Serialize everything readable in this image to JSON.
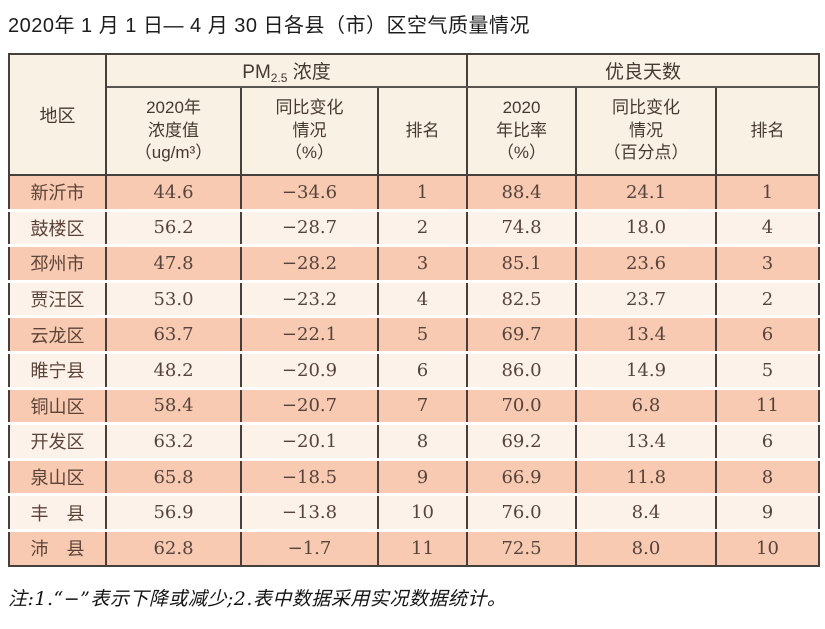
{
  "title": "2020年 1 月 1 日— 4 月 30 日各县（市）区空气质量情况",
  "colors": {
    "row_odd": "#f8cab1",
    "row_even": "#fdf2ea",
    "header_bg": "#faf1e5",
    "border_dark": "#45403c",
    "text_table": "#55443c",
    "title_text": "#1c1c1c"
  },
  "table": {
    "region_header": "地区",
    "pm_group": {
      "prefix": "PM",
      "sub": "2.5",
      "suffix": " 浓度"
    },
    "good_group": "优良天数",
    "sub_headers": {
      "pm_value": "2020年\n浓度值\n（ug/m³）",
      "pm_change": "同比变化\n情况\n（%）",
      "pm_rank": "排名",
      "good_rate": "2020\n年比率\n（%）",
      "good_change": "同比变化\n情况\n（百分点）",
      "good_rank": "排名"
    },
    "rows": [
      {
        "region": "新沂市",
        "pm_value": "44.6",
        "pm_change": "−34.6",
        "pm_rank": "1",
        "good_rate": "88.4",
        "good_change": "24.1",
        "good_rank": "1"
      },
      {
        "region": "鼓楼区",
        "pm_value": "56.2",
        "pm_change": "−28.7",
        "pm_rank": "2",
        "good_rate": "74.8",
        "good_change": "18.0",
        "good_rank": "4"
      },
      {
        "region": "邳州市",
        "pm_value": "47.8",
        "pm_change": "−28.2",
        "pm_rank": "3",
        "good_rate": "85.1",
        "good_change": "23.6",
        "good_rank": "3"
      },
      {
        "region": "贾汪区",
        "pm_value": "53.0",
        "pm_change": "−23.2",
        "pm_rank": "4",
        "good_rate": "82.5",
        "good_change": "23.7",
        "good_rank": "2"
      },
      {
        "region": "云龙区",
        "pm_value": "63.7",
        "pm_change": "−22.1",
        "pm_rank": "5",
        "good_rate": "69.7",
        "good_change": "13.4",
        "good_rank": "6"
      },
      {
        "region": "睢宁县",
        "pm_value": "48.2",
        "pm_change": "−20.9",
        "pm_rank": "6",
        "good_rate": "86.0",
        "good_change": "14.9",
        "good_rank": "5"
      },
      {
        "region": "铜山区",
        "pm_value": "58.4",
        "pm_change": "−20.7",
        "pm_rank": "7",
        "good_rate": "70.0",
        "good_change": "6.8",
        "good_rank": "11"
      },
      {
        "region": "开发区",
        "pm_value": "63.2",
        "pm_change": "−20.1",
        "pm_rank": "8",
        "good_rate": "69.2",
        "good_change": "13.4",
        "good_rank": "6"
      },
      {
        "region": "泉山区",
        "pm_value": "65.8",
        "pm_change": "−18.5",
        "pm_rank": "9",
        "good_rate": "66.9",
        "good_change": "11.8",
        "good_rank": "8"
      },
      {
        "region": "丰　县",
        "pm_value": "56.9",
        "pm_change": "−13.8",
        "pm_rank": "10",
        "good_rate": "76.0",
        "good_change": "8.4",
        "good_rank": "9"
      },
      {
        "region": "沛　县",
        "pm_value": "62.8",
        "pm_change": "−1.7",
        "pm_rank": "11",
        "good_rate": "72.5",
        "good_change": "8.0",
        "good_rank": "10"
      }
    ]
  },
  "footnote": "注:1.“−”表示下降或减少;2.表中数据采用实况数据统计。"
}
